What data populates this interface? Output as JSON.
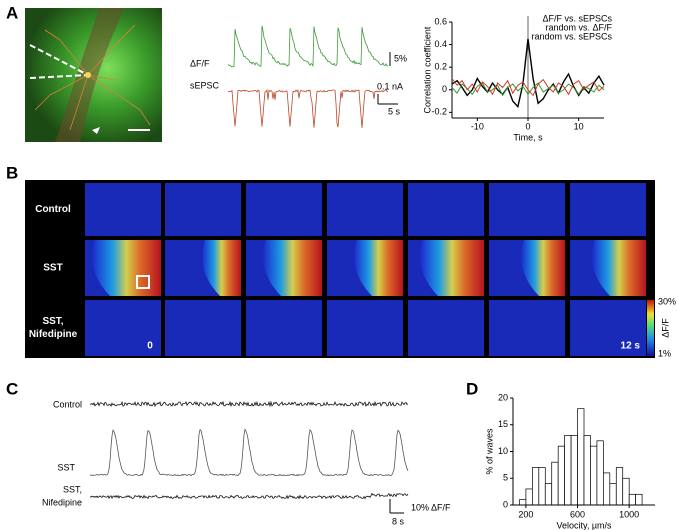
{
  "panel_labels": [
    "A",
    "B",
    "C",
    "D"
  ],
  "panel_a": {
    "trace_labels": [
      "ΔF/F",
      "sEPSC"
    ],
    "scale_labels": [
      "5%",
      "0.1 nA",
      "5 s"
    ]
  },
  "panel_b": {
    "row_labels": [
      [
        "Control"
      ],
      [
        "SST"
      ],
      [
        "SST,",
        "Nifedipine"
      ]
    ],
    "time_labels": [
      "0",
      "12 s"
    ],
    "colorbar": {
      "max": "30%",
      "label": "ΔF/F",
      "min": "1%"
    }
  },
  "panel_c": {
    "row_labels": [
      [
        "Control"
      ],
      [
        "SST"
      ],
      [
        "SST,",
        "Nifedipine"
      ]
    ],
    "scale_labels": [
      "10% ΔF/F",
      "8 s"
    ]
  },
  "chart_data": [
    {
      "type": "line",
      "xlabel": "Time, s",
      "ylabel": "Correlation coefficient",
      "x": [
        -15,
        -14,
        -13,
        -12,
        -11,
        -10,
        -9,
        -8,
        -7,
        -6,
        -5,
        -4,
        -3,
        -2,
        -1,
        0,
        1,
        2,
        3,
        4,
        5,
        6,
        7,
        8,
        9,
        10,
        11,
        12,
        13,
        14,
        15
      ],
      "xlim": [
        -15,
        15
      ],
      "xticks": [
        -10,
        0,
        10
      ],
      "ylim": [
        -0.25,
        0.6
      ],
      "yticks": [
        -0.2,
        0,
        0.2,
        0.4,
        0.6
      ],
      "series": [
        {
          "name": "ΔF/F vs. sEPSCs",
          "color": "#000000",
          "values": [
            0.05,
            0.08,
            0.02,
            -0.05,
            0.0,
            0.1,
            0.03,
            -0.02,
            0.06,
            0.0,
            -0.04,
            0.02,
            -0.1,
            -0.15,
            0.05,
            0.45,
            0.1,
            -0.12,
            -0.08,
            0.0,
            0.05,
            -0.03,
            0.07,
            0.14,
            0.03,
            -0.05,
            0.02,
            -0.03,
            0.06,
            0.12,
            0.04
          ]
        },
        {
          "name": "random vs. ΔF/F",
          "color": "#2e9a2e",
          "values": [
            0.02,
            -0.03,
            0.05,
            0.01,
            -0.04,
            0.03,
            0.06,
            -0.02,
            0.0,
            0.04,
            -0.05,
            0.02,
            0.05,
            -0.01,
            0.03,
            -0.04,
            0.02,
            0.06,
            -0.02,
            0.01,
            0.04,
            -0.03,
            0.0,
            0.05,
            0.02,
            -0.04,
            0.03,
            0.01,
            -0.02,
            0.04,
            0.0
          ]
        },
        {
          "name": "random vs. sEPSCs",
          "color": "#d03a2a",
          "values": [
            0.1,
            0.04,
            0.08,
            0.0,
            0.05,
            -0.02,
            0.07,
            0.03,
            -0.04,
            0.06,
            0.02,
            0.08,
            -0.03,
            0.04,
            0.07,
            0.0,
            -0.05,
            0.05,
            0.09,
            0.02,
            -0.02,
            0.06,
            0.03,
            -0.04,
            0.05,
            0.08,
            0.0,
            0.04,
            0.07,
            -0.01,
            0.03
          ]
        }
      ]
    },
    {
      "type": "histogram",
      "xlabel": "Velocity, µm/s",
      "ylabel": "% of waves",
      "bins": [
        150,
        200,
        250,
        300,
        350,
        400,
        450,
        500,
        550,
        600,
        650,
        700,
        750,
        800,
        850,
        900,
        950,
        1000,
        1050,
        1100
      ],
      "values": [
        1,
        3,
        7,
        7,
        4,
        8,
        11,
        13,
        13,
        18,
        13,
        11,
        12,
        6,
        4,
        7,
        5,
        2,
        2
      ],
      "xlim": [
        100,
        1200
      ],
      "xticks": [
        200,
        600,
        1000
      ],
      "ylim": [
        0,
        20
      ],
      "yticks": [
        0,
        5,
        10,
        15,
        20
      ],
      "color": "#ffffff"
    }
  ]
}
